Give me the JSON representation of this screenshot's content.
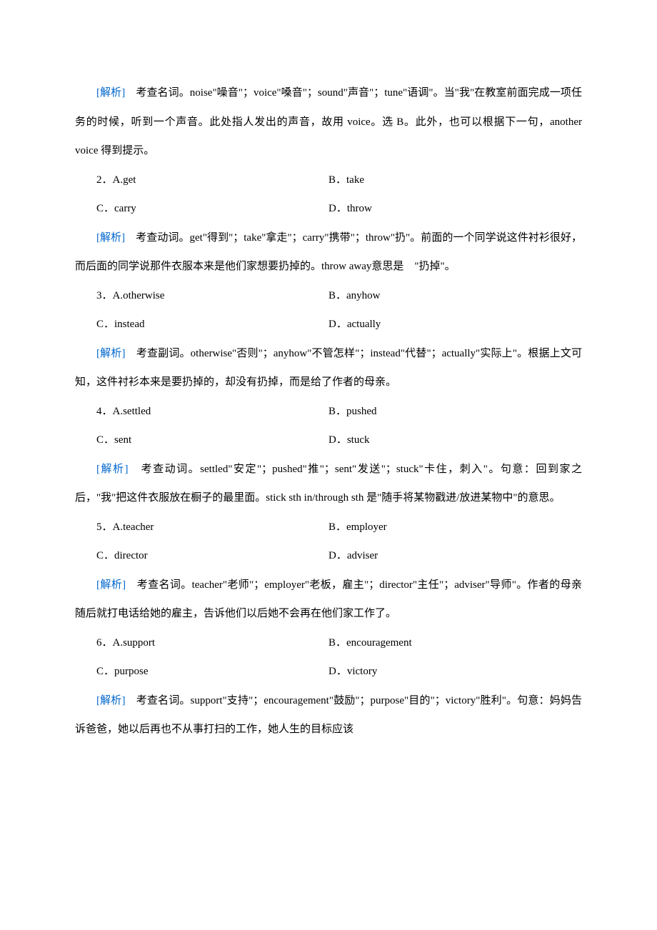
{
  "q1": {
    "analysis_label": "[解析]",
    "analysis_text": "　考查名词。noise\"噪音\"；voice\"嗓音\"；sound\"声音\"；tune\"语调\"。当\"我\"在教室前面完成一项任务的时候，听到一个声音。此处指人发出的声音，故用 voice。选 B。此外，也可以根据下一句，another voice 得到提示。"
  },
  "q2": {
    "num": "2．",
    "optA": "A.get",
    "optB": "B．take",
    "optC": "C．carry",
    "optD": "D．throw",
    "analysis_label": "[解析]",
    "analysis_text": "　考查动词。get\"得到\"；take\"拿走\"；carry\"携带\"；throw\"扔\"。前面的一个同学说这件衬衫很好，而后面的同学说那件衣服本来是他们家想要扔掉的。throw away意思是　\"扔掉\"。"
  },
  "q3": {
    "num": "3．",
    "optA": "A.otherwise",
    "optB": "B．anyhow",
    "optC": "C．instead",
    "optD": "D．actually",
    "analysis_label": "[解析]",
    "analysis_text": "　考查副词。otherwise\"否则\"；anyhow\"不管怎样\"；instead\"代替\"；actually\"实际上\"。根据上文可知，这件衬衫本来是要扔掉的，却没有扔掉，而是给了作者的母亲。"
  },
  "q4": {
    "num": "4．",
    "optA": "A.settled",
    "optB": "B．pushed",
    "optC": "C．sent",
    "optD": "D．stuck",
    "analysis_label": "[解析]",
    "analysis_text": "　考查动词。settled\"安定\"；pushed\"推\"；sent\"发送\"；stuck\"卡住，刺入\"。句意：回到家之后，\"我\"把这件衣服放在橱子的最里面。stick sth in/through sth 是\"随手将某物戳进/放进某物中\"的意思。"
  },
  "q5": {
    "num": "5．",
    "optA": "A.teacher",
    "optB": "B．employer",
    "optC": "C．director",
    "optD": "D．adviser",
    "analysis_label": "[解析]",
    "analysis_text": "　考查名词。teacher\"老师\"；employer\"老板，雇主\"；director\"主任\"；adviser\"导师\"。作者的母亲随后就打电话给她的雇主，告诉他们以后她不会再在他们家工作了。"
  },
  "q6": {
    "num": "6．",
    "optA": "A.support",
    "optB": "B．encouragement",
    "optC": "C．purpose",
    "optD": "D．victory",
    "analysis_label": "[解析]",
    "analysis_text": "　考查名词。support\"支持\"；encouragement\"鼓励\"；purpose\"目的\"；victory\"胜利\"。句意：妈妈告诉爸爸，她以后再也不从事打扫的工作，她人生的目标应该"
  }
}
